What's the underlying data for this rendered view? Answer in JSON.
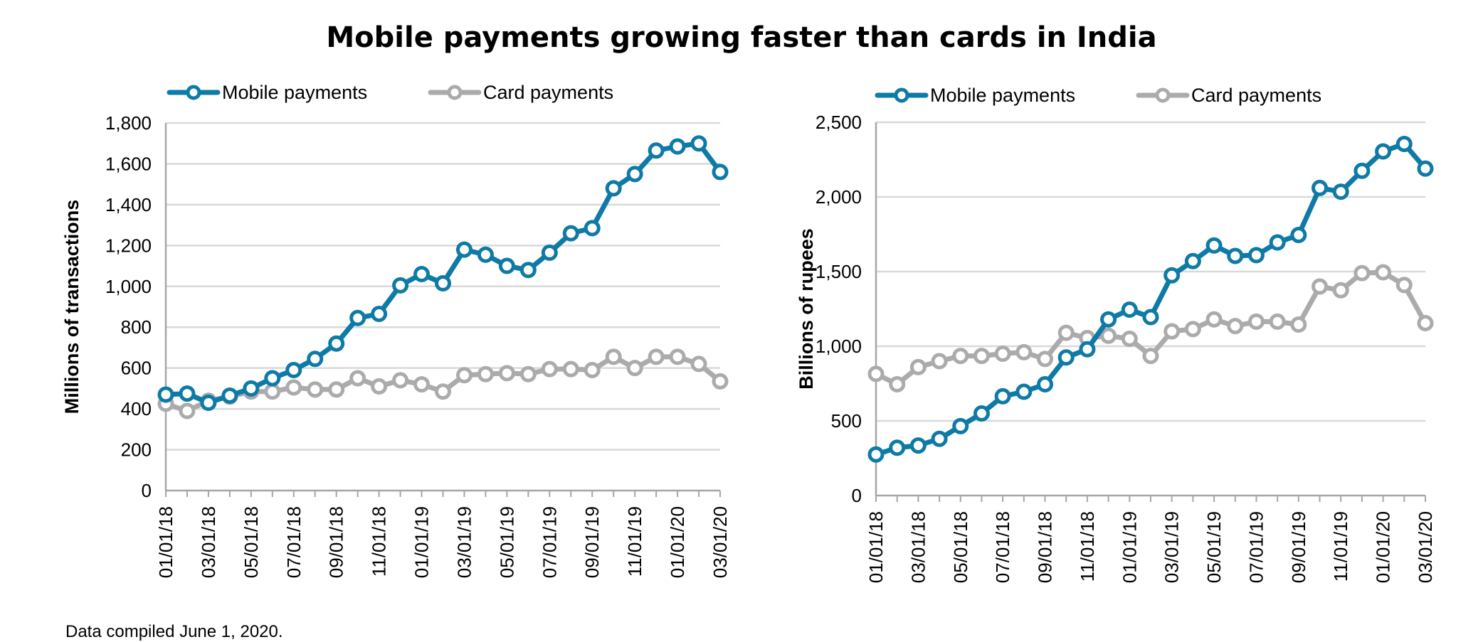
{
  "title": "Mobile payments growing faster than cards in India",
  "footnote": "Data compiled June 1, 2020.",
  "colors": {
    "mobile": "#0E7AA6",
    "card": "#ABABAB",
    "grid": "#D9D9D9",
    "axis": "#A6A6A6"
  },
  "chart_data": [
    {
      "type": "line",
      "title": "",
      "xlabel": "",
      "ylabel": "Millions of transactions",
      "ylim": [
        0,
        1800
      ],
      "yticks": [
        0,
        200,
        400,
        600,
        800,
        1000,
        1200,
        1400,
        1600,
        1800
      ],
      "ytick_labels": [
        "0",
        "200",
        "400",
        "600",
        "800",
        "1,000",
        "1,200",
        "1,400",
        "1,600",
        "1,800"
      ],
      "x": [
        "01/01/18",
        "02/01/18",
        "03/01/18",
        "04/01/18",
        "05/01/18",
        "06/01/18",
        "07/01/18",
        "08/01/18",
        "09/01/18",
        "10/01/18",
        "11/01/18",
        "12/01/18",
        "01/01/19",
        "02/01/19",
        "03/01/19",
        "04/01/19",
        "05/01/19",
        "06/01/19",
        "07/01/19",
        "08/01/19",
        "09/01/19",
        "10/01/19",
        "11/01/19",
        "12/01/19",
        "01/01/20",
        "02/01/20",
        "03/01/20"
      ],
      "xtick_labels": [
        "01/01/18",
        "03/01/18",
        "05/01/18",
        "07/01/18",
        "09/01/18",
        "11/01/18",
        "01/01/19",
        "03/01/19",
        "05/01/19",
        "07/01/19",
        "09/01/19",
        "11/01/19",
        "01/01/20",
        "03/01/20"
      ],
      "legend_position": "top-left",
      "grid": true,
      "series": [
        {
          "name": "Mobile payments",
          "color": "#0E7AA6",
          "values": [
            470,
            475,
            430,
            465,
            500,
            550,
            590,
            645,
            720,
            845,
            865,
            1005,
            1060,
            1015,
            1180,
            1155,
            1100,
            1080,
            1165,
            1260,
            1285,
            1480,
            1550,
            1665,
            1685,
            1700,
            1560
          ]
        },
        {
          "name": "Card payments",
          "color": "#ABABAB",
          "values": [
            425,
            390,
            440,
            460,
            485,
            485,
            505,
            495,
            495,
            550,
            510,
            540,
            520,
            485,
            565,
            570,
            575,
            570,
            595,
            595,
            590,
            655,
            600,
            655,
            655,
            620,
            535
          ]
        }
      ]
    },
    {
      "type": "line",
      "title": "",
      "xlabel": "",
      "ylabel": "Billions of rupees",
      "ylim": [
        0,
        2500
      ],
      "yticks": [
        0,
        500,
        1000,
        1500,
        2000,
        2500
      ],
      "ytick_labels": [
        "0",
        "500",
        "1,000",
        "1,500",
        "2,000",
        "2,500"
      ],
      "x": [
        "01/01/18",
        "02/01/18",
        "03/01/18",
        "04/01/18",
        "05/01/18",
        "06/01/18",
        "07/01/18",
        "08/01/18",
        "09/01/18",
        "10/01/18",
        "11/01/18",
        "12/01/18",
        "01/01/19",
        "02/01/19",
        "03/01/19",
        "04/01/19",
        "05/01/19",
        "06/01/19",
        "07/01/19",
        "08/01/19",
        "09/01/19",
        "10/01/19",
        "11/01/19",
        "12/01/19",
        "01/01/20",
        "02/01/20",
        "03/01/20"
      ],
      "xtick_labels": [
        "01/01/18",
        "03/01/18",
        "05/01/18",
        "07/01/18",
        "09/01/18",
        "11/01/18",
        "01/01/19",
        "03/01/19",
        "05/01/19",
        "07/01/19",
        "09/01/19",
        "11/01/19",
        "01/01/20",
        "03/01/20"
      ],
      "legend_position": "top-left",
      "grid": true,
      "series": [
        {
          "name": "Mobile payments",
          "color": "#0E7AA6",
          "values": [
            275,
            320,
            335,
            380,
            465,
            550,
            665,
            695,
            745,
            925,
            980,
            1180,
            1245,
            1195,
            1475,
            1570,
            1675,
            1605,
            1610,
            1695,
            1745,
            2060,
            2035,
            2175,
            2305,
            2355,
            2190
          ]
        },
        {
          "name": "Card payments",
          "color": "#ABABAB",
          "values": [
            815,
            745,
            860,
            900,
            935,
            935,
            950,
            960,
            915,
            1090,
            1055,
            1070,
            1050,
            935,
            1100,
            1115,
            1180,
            1135,
            1165,
            1165,
            1145,
            1400,
            1375,
            1490,
            1495,
            1410,
            1155
          ]
        }
      ]
    }
  ]
}
